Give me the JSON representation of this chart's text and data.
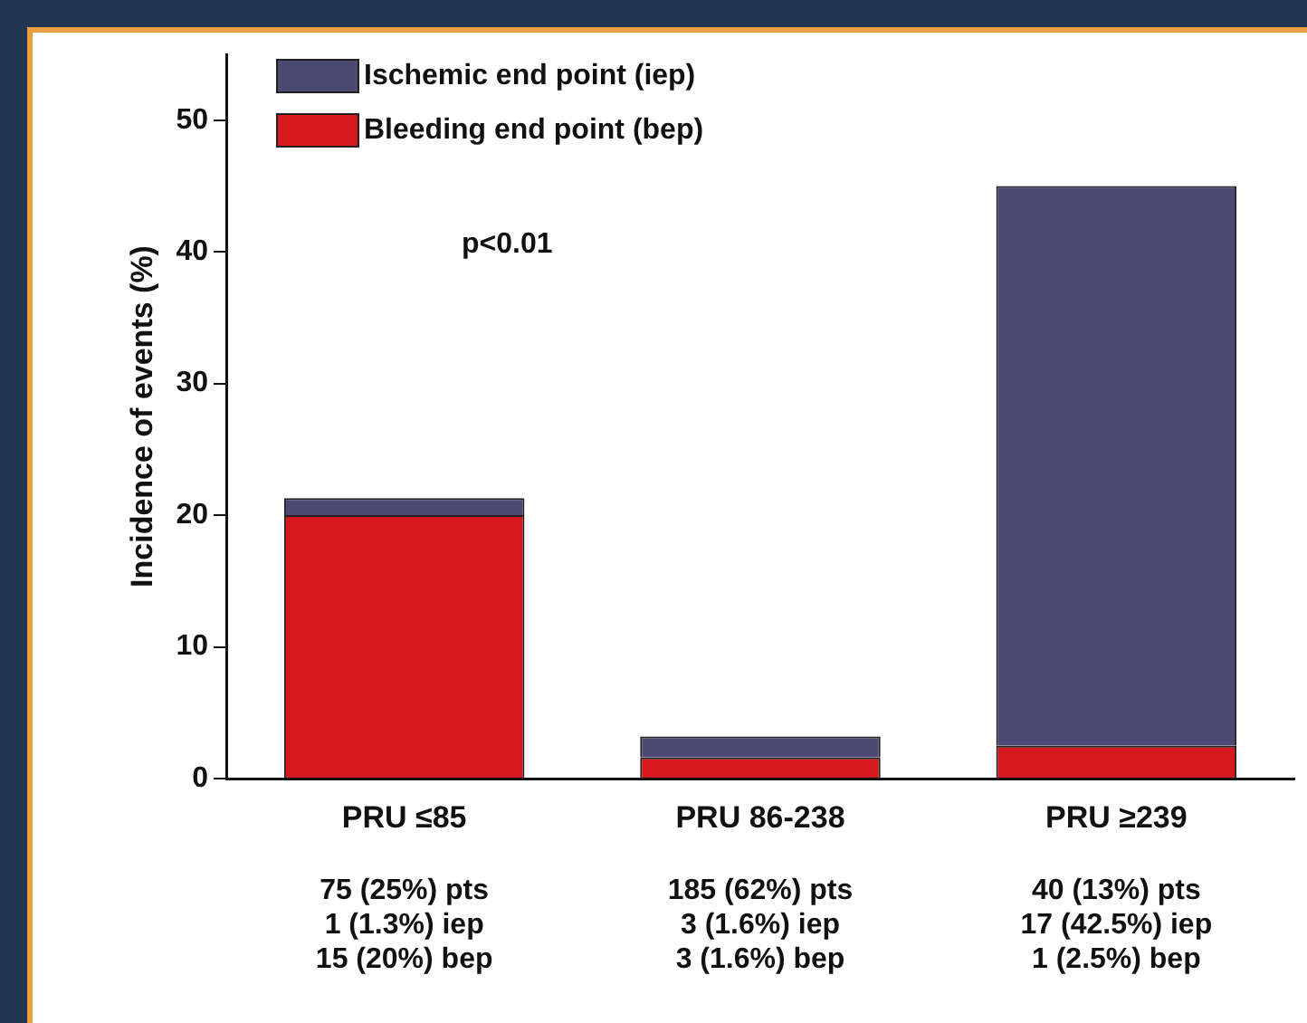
{
  "chart_data": {
    "type": "bar",
    "stacked": true,
    "ylabel": "Incidence of events (%)",
    "categories": [
      "PRU ≤85",
      "PRU 86-238",
      "PRU ≥239"
    ],
    "series": [
      {
        "name": "Bleeding end point (bep)",
        "color": "#d7191f",
        "values": [
          20,
          1.6,
          2.5
        ]
      },
      {
        "name": "Ischemic end point (iep)",
        "color": "#4b4a72",
        "values": [
          1.3,
          1.6,
          42.5
        ]
      }
    ],
    "ylim": [
      0,
      55
    ],
    "yticks": [
      0,
      10,
      20,
      30,
      40,
      50
    ],
    "grid": false,
    "legend": "top left",
    "annotations": [
      "p<0.01",
      "75 (25%) pts\n1 (1.3%) iep\n15 (20%) bep",
      "185 (62%) pts\n3 (1.6%) iep\n3 (1.6%) bep",
      "40 (13%) pts\n17 (42.5%) iep\n1 (2.5%) bep"
    ]
  }
}
